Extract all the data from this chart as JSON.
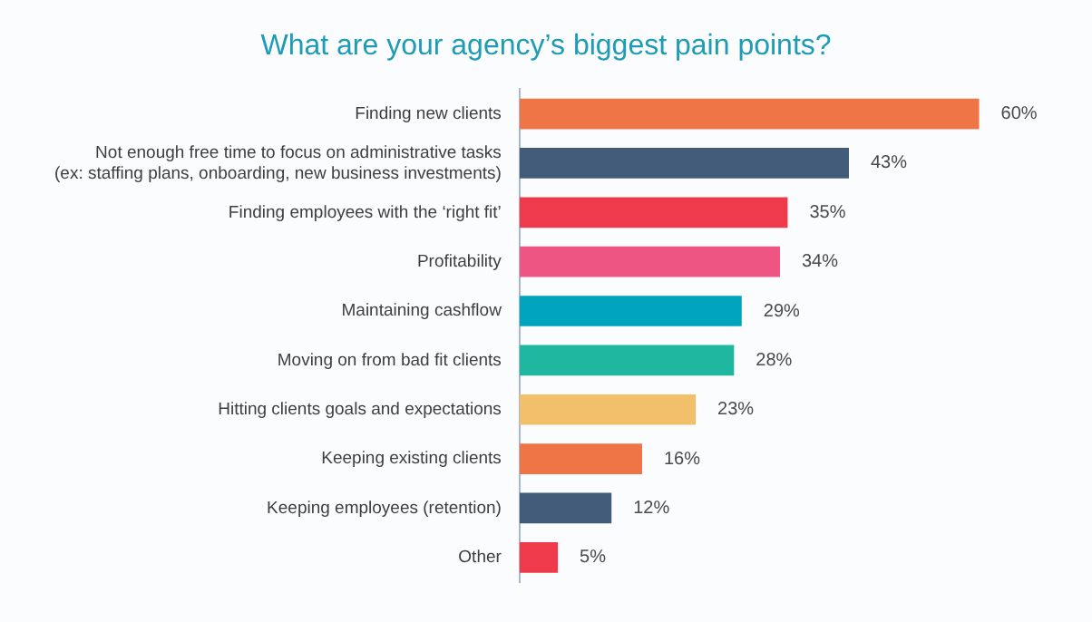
{
  "chart_data": {
    "type": "bar",
    "orientation": "horizontal",
    "title": "What are your agency’s biggest pain points?",
    "categories": [
      "Finding new clients",
      "Not enough free time to focus on administrative tasks\n(ex: staffing plans, onboarding, new business investments)",
      "Finding employees with the ‘right fit’",
      "Profitability",
      "Maintaining cashflow",
      "Moving on from bad fit clients",
      "Hitting clients goals and expectations",
      "Keeping existing clients",
      "Keeping employees (retention)",
      "Other"
    ],
    "values": [
      60,
      43,
      35,
      34,
      29,
      28,
      23,
      16,
      12,
      5
    ],
    "value_labels": [
      "60%",
      "43%",
      "35%",
      "34%",
      "29%",
      "28%",
      "23%",
      "16%",
      "12%",
      "5%"
    ],
    "colors": [
      "#ef7547",
      "#425b78",
      "#ee3a4a",
      "#ef5582",
      "#00a4bd",
      "#1fb79f",
      "#f2c06b",
      "#ef7547",
      "#425b78",
      "#ee3a4a"
    ],
    "legend": false,
    "tick_labels": "y"
  }
}
